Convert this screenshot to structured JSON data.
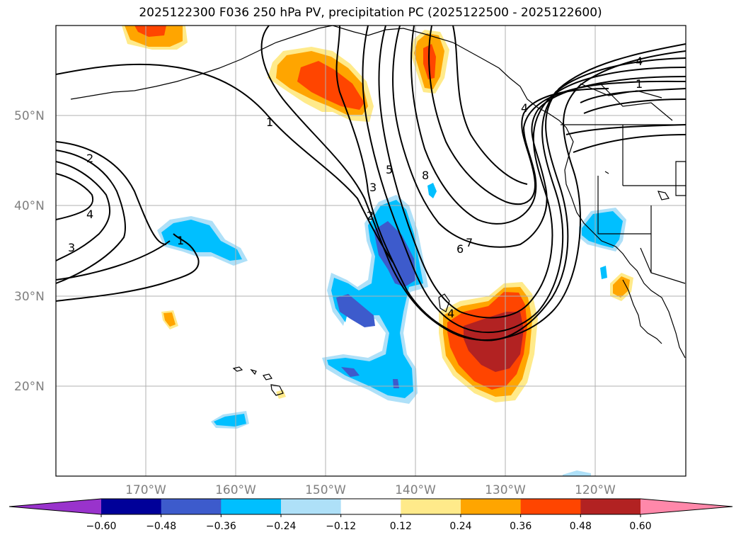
{
  "title": "2025122300 F036 250 hPa PV, precipitation PC (2025122500 - 2025122600)",
  "map": {
    "lat_labels": [
      "50°N",
      "40°N",
      "30°N",
      "20°N"
    ],
    "lon_labels": [
      "170°W",
      "160°W",
      "150°W",
      "140°W",
      "130°W",
      "120°W"
    ],
    "pv_contour_labels": [
      "1",
      "2",
      "3",
      "4",
      "5",
      "6",
      "7",
      "8",
      "1",
      "2",
      "3",
      "4",
      "1",
      "4",
      "4"
    ]
  },
  "colorbar": {
    "ticks": [
      "−0.60",
      "−0.48",
      "−0.36",
      "−0.24",
      "−0.12",
      "0.12",
      "0.24",
      "0.36",
      "0.48",
      "0.60"
    ],
    "colors": [
      "#9933cc",
      "#000099",
      "#3d5bcc",
      "#00bfff",
      "#aee0f8",
      "#ffffff",
      "#ffea8a",
      "#ffa500",
      "#ff4500",
      "#b22222",
      "#ff88aa"
    ]
  }
}
